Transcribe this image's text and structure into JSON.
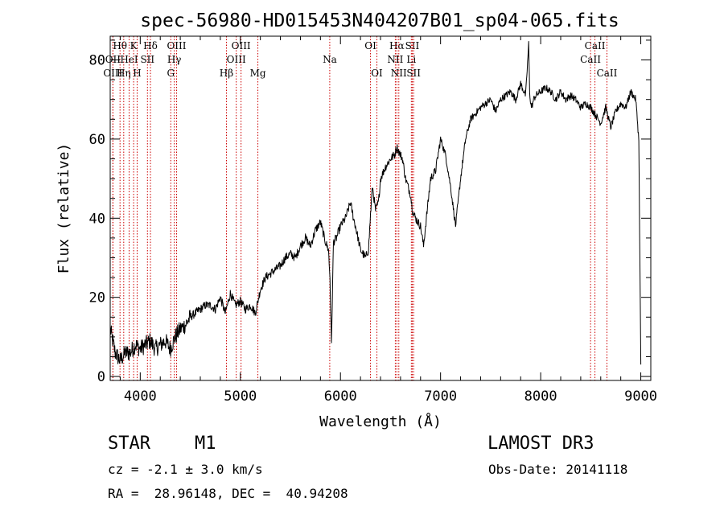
{
  "chart_data": {
    "type": "line",
    "title": "spec-56980-HD015453N404207B01_sp04-065.fits",
    "xlabel": "Wavelength (Å)",
    "ylabel": "Flux (relative)",
    "xlim": [
      3700,
      9100
    ],
    "ylim": [
      -1,
      86
    ],
    "x_ticks": [
      4000,
      5000,
      6000,
      7000,
      8000,
      9000
    ],
    "y_ticks": [
      0,
      20,
      40,
      60,
      80
    ],
    "x_tick_labels": [
      "4000",
      "5000",
      "6000",
      "7000",
      "8000",
      "9000"
    ],
    "y_tick_labels": [
      "0",
      "20",
      "40",
      "60",
      "80"
    ],
    "series": [
      {
        "name": "spectrum",
        "x": [
          3700,
          3750,
          3800,
          3850,
          3900,
          3950,
          4000,
          4050,
          4100,
          4150,
          4200,
          4250,
          4300,
          4350,
          4400,
          4450,
          4500,
          4550,
          4600,
          4650,
          4700,
          4750,
          4800,
          4850,
          4900,
          4950,
          5000,
          5050,
          5100,
          5150,
          5200,
          5250,
          5300,
          5350,
          5400,
          5450,
          5500,
          5550,
          5600,
          5650,
          5700,
          5750,
          5800,
          5850,
          5880,
          5895,
          5910,
          5930,
          5960,
          6000,
          6050,
          6100,
          6130,
          6150,
          6200,
          6250,
          6280,
          6300,
          6320,
          6350,
          6380,
          6400,
          6450,
          6500,
          6540,
          6563,
          6580,
          6620,
          6650,
          6700,
          6720,
          6750,
          6800,
          6830,
          6850,
          6900,
          6950,
          7000,
          7050,
          7100,
          7150,
          7200,
          7250,
          7300,
          7400,
          7500,
          7550,
          7600,
          7650,
          7700,
          7750,
          7800,
          7850,
          7880,
          7890,
          7900,
          7910,
          7930,
          7950,
          8000,
          8050,
          8100,
          8150,
          8200,
          8250,
          8300,
          8350,
          8400,
          8450,
          8500,
          8550,
          8600,
          8650,
          8700,
          8750,
          8800,
          8850,
          8900,
          8950,
          8980,
          9000
        ],
        "y": [
          12,
          6,
          4,
          6,
          6,
          8,
          7,
          8,
          9,
          7,
          8,
          9,
          7,
          10,
          12,
          13,
          15,
          16,
          17,
          18,
          18,
          17,
          20,
          16,
          21,
          18,
          19,
          17,
          18,
          16,
          22,
          25,
          26,
          27,
          28,
          30,
          31,
          30,
          33,
          35,
          33,
          37,
          39,
          34,
          32,
          25,
          8,
          34,
          35,
          38,
          40,
          44,
          40,
          38,
          32,
          30,
          32,
          41,
          48,
          42,
          44,
          50,
          53,
          55,
          56,
          58,
          57,
          55,
          50,
          46,
          42,
          40,
          38,
          33,
          38,
          50,
          52,
          60,
          56,
          48,
          38,
          50,
          60,
          65,
          68,
          70,
          67,
          70,
          71,
          72,
          70,
          74,
          71,
          84,
          72,
          69,
          68,
          70,
          71,
          72,
          73,
          72,
          70,
          72,
          70,
          71,
          70,
          68,
          69,
          68,
          66,
          64,
          68,
          63,
          67,
          69,
          68,
          72,
          70,
          60,
          3
        ]
      }
    ],
    "line_markers": [
      {
        "label": "Hθ",
        "wavelength": 3798,
        "row": 0
      },
      {
        "label": "OII",
        "wavelength": 3727,
        "row": 1
      },
      {
        "label": "OIII",
        "wavelength": 3727,
        "row": 2
      },
      {
        "label": "Hη",
        "wavelength": 3835,
        "row": 2
      },
      {
        "label": "HeI",
        "wavelength": 3889,
        "row": 1
      },
      {
        "label": "K",
        "wavelength": 3934,
        "row": 0
      },
      {
        "label": "SII",
        "wavelength": 4072,
        "row": 1
      },
      {
        "label": "H",
        "wavelength": 3969,
        "row": 2
      },
      {
        "label": "Hδ",
        "wavelength": 4102,
        "row": 0
      },
      {
        "label": "OIII",
        "wavelength": 4363,
        "row": 0
      },
      {
        "label": "Hγ",
        "wavelength": 4340,
        "row": 1
      },
      {
        "label": "G",
        "wavelength": 4305,
        "row": 2
      },
      {
        "label": "Hβ",
        "wavelength": 4861,
        "row": 2
      },
      {
        "label": "OIII",
        "wavelength": 4959,
        "row": 1
      },
      {
        "label": "OIII",
        "wavelength": 5007,
        "row": 0
      },
      {
        "label": "Mg",
        "wavelength": 5175,
        "row": 2
      },
      {
        "label": "Na",
        "wavelength": 5893,
        "row": 1
      },
      {
        "label": "OI",
        "wavelength": 6300,
        "row": 0
      },
      {
        "label": "OI",
        "wavelength": 6364,
        "row": 2
      },
      {
        "label": "Hα",
        "wavelength": 6563,
        "row": 0
      },
      {
        "label": "NII",
        "wavelength": 6548,
        "row": 1
      },
      {
        "label": "NII",
        "wavelength": 6583,
        "row": 2
      },
      {
        "label": "SII",
        "wavelength": 6717,
        "row": 0
      },
      {
        "label": "Li",
        "wavelength": 6708,
        "row": 1
      },
      {
        "label": "SII",
        "wavelength": 6731,
        "row": 2
      },
      {
        "label": "CaII",
        "wavelength": 8542,
        "row": 0
      },
      {
        "label": "CaII",
        "wavelength": 8498,
        "row": 1
      },
      {
        "label": "CaII",
        "wavelength": 8662,
        "row": 2
      }
    ]
  },
  "info": {
    "class_label": "STAR",
    "subclass_label": "M1",
    "survey": "LAMOST DR3",
    "cz": "cz = -2.1 ± 3.0 km/s",
    "obs_date": "Obs-Date: 20141118",
    "coords": "RA =  28.96148, DEC =  40.94208"
  },
  "colors": {
    "axis": "#000000",
    "spectrum": "#000000",
    "line_marker": "#cc0000"
  }
}
